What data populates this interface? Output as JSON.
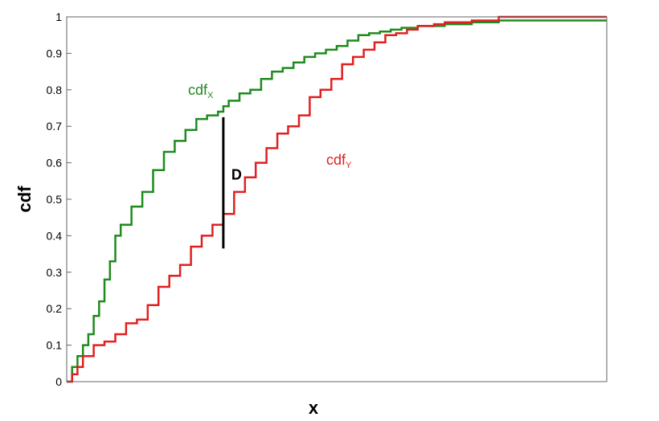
{
  "chart_data": {
    "type": "line",
    "title": "",
    "xlabel": "x",
    "ylabel": "cdf",
    "xlim": [
      0,
      1
    ],
    "ylim": [
      0,
      1
    ],
    "x_tick_labels": [],
    "y_ticks": [
      0,
      0.1,
      0.2,
      0.3,
      0.4,
      0.5,
      0.6,
      0.7,
      0.8,
      0.9,
      1
    ],
    "y_tick_labels": [
      "0",
      "0.1",
      "0.2",
      "0.3",
      "0.4",
      "0.5",
      "0.6",
      "0.7",
      "0.8",
      "0.9",
      "1"
    ],
    "grid": false,
    "series": [
      {
        "label_main": "cdf",
        "label_sub": "X",
        "color": "#1f8a1f",
        "x": [
          0,
          0.01,
          0.02,
          0.03,
          0.04,
          0.05,
          0.06,
          0.07,
          0.08,
          0.09,
          0.1,
          0.12,
          0.14,
          0.16,
          0.18,
          0.2,
          0.22,
          0.24,
          0.26,
          0.28,
          0.29,
          0.3,
          0.32,
          0.34,
          0.36,
          0.38,
          0.4,
          0.42,
          0.44,
          0.46,
          0.48,
          0.5,
          0.52,
          0.54,
          0.56,
          0.58,
          0.6,
          0.62,
          0.65,
          0.7,
          0.75,
          0.8,
          0.85,
          0.9,
          0.95,
          1
        ],
        "y": [
          0,
          0.04,
          0.07,
          0.1,
          0.13,
          0.18,
          0.22,
          0.28,
          0.33,
          0.4,
          0.43,
          0.48,
          0.52,
          0.58,
          0.63,
          0.66,
          0.69,
          0.72,
          0.73,
          0.74,
          0.755,
          0.77,
          0.79,
          0.8,
          0.83,
          0.85,
          0.86,
          0.875,
          0.89,
          0.9,
          0.91,
          0.92,
          0.935,
          0.95,
          0.955,
          0.96,
          0.965,
          0.97,
          0.975,
          0.98,
          0.985,
          0.99,
          0.99,
          0.99,
          0.99,
          0.99
        ]
      },
      {
        "label_main": "cdf",
        "label_sub": "Y",
        "color": "#e02020",
        "x": [
          0,
          0.01,
          0.02,
          0.03,
          0.05,
          0.07,
          0.09,
          0.11,
          0.13,
          0.15,
          0.17,
          0.19,
          0.21,
          0.23,
          0.25,
          0.27,
          0.29,
          0.31,
          0.33,
          0.35,
          0.37,
          0.39,
          0.41,
          0.43,
          0.45,
          0.47,
          0.49,
          0.51,
          0.53,
          0.55,
          0.57,
          0.59,
          0.61,
          0.63,
          0.65,
          0.68,
          0.7,
          0.75,
          0.8,
          0.85,
          0.9,
          0.95,
          1
        ],
        "y": [
          0,
          0.02,
          0.04,
          0.07,
          0.1,
          0.11,
          0.13,
          0.16,
          0.17,
          0.21,
          0.26,
          0.29,
          0.32,
          0.37,
          0.4,
          0.43,
          0.46,
          0.52,
          0.56,
          0.6,
          0.64,
          0.68,
          0.7,
          0.73,
          0.78,
          0.8,
          0.83,
          0.87,
          0.89,
          0.91,
          0.93,
          0.95,
          0.955,
          0.965,
          0.975,
          0.98,
          0.985,
          0.99,
          1,
          1,
          1,
          1,
          1
        ]
      }
    ],
    "annotations": [
      {
        "text": "D",
        "x": 0.29,
        "y_top": 0.725,
        "y_bottom": 0.365
      }
    ]
  }
}
